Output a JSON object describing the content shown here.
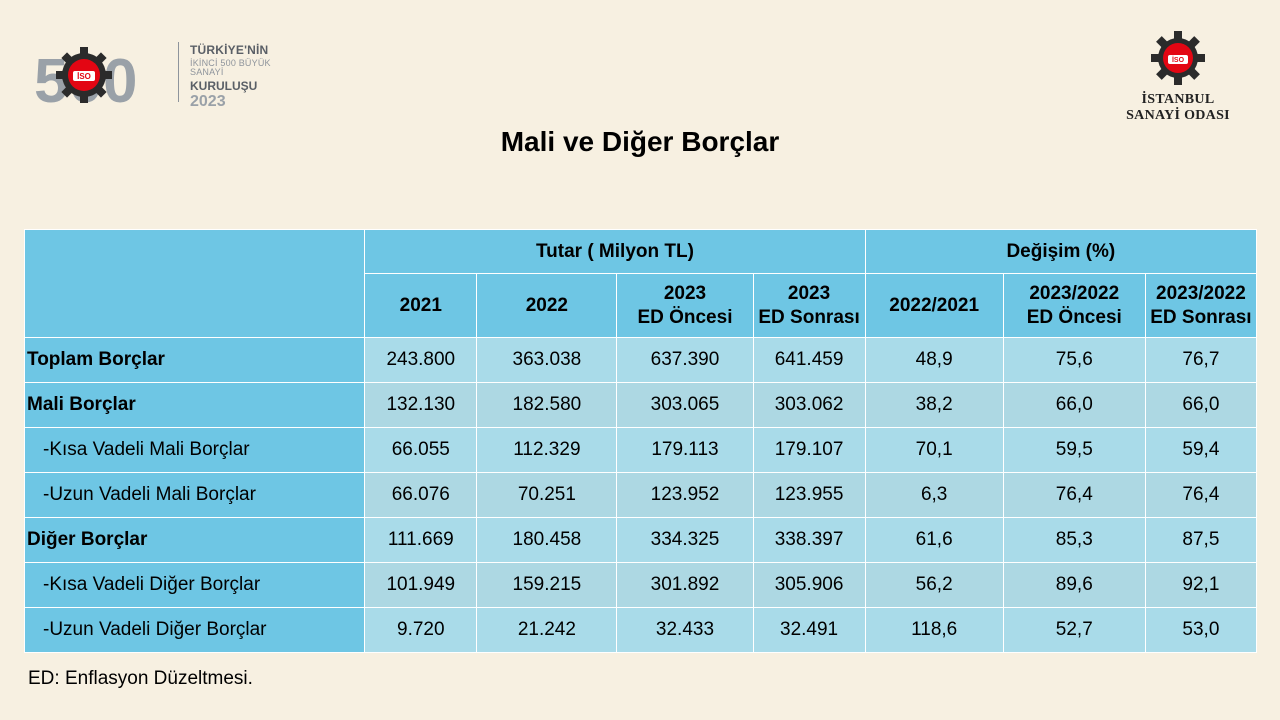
{
  "brand": {
    "logo_text": "500",
    "line1": "TÜRKİYE'NİN",
    "line2": "İKİNCİ 500 BÜYÜK SANAYİ",
    "line3": "KURULUŞU",
    "year": "2023",
    "badge_text": "İSO"
  },
  "iso": {
    "badge_text": "İSO",
    "name_line1": "İSTANBUL",
    "name_line2": "SANAYİ ODASI"
  },
  "title": "Mali ve Diğer Borçlar",
  "table": {
    "group_headers": {
      "amount": "Tutar ( Milyon TL)",
      "change": "Değişim (%)"
    },
    "columns": [
      {
        "l1": "2021",
        "l2": ""
      },
      {
        "l1": "2022",
        "l2": ""
      },
      {
        "l1": "2023",
        "l2": "ED Öncesi"
      },
      {
        "l1": "2023",
        "l2": "ED Sonrası"
      },
      {
        "l1": "2022/2021",
        "l2": ""
      },
      {
        "l1": "2023/2022",
        "l2": "ED Öncesi"
      },
      {
        "l1": "2023/2022",
        "l2": "ED Sonrası"
      }
    ],
    "rows": [
      {
        "label": "Toplam Borçlar",
        "values": [
          "243.800",
          "363.038",
          "637.390",
          "641.459",
          "48,9",
          "75,6",
          "76,7"
        ]
      },
      {
        "label": "Mali Borçlar",
        "values": [
          "132.130",
          "182.580",
          "303.065",
          "303.062",
          "38,2",
          "66,0",
          "66,0"
        ]
      },
      {
        "label": "-Kısa Vadeli Mali Borçlar",
        "values": [
          "66.055",
          "112.329",
          "179.113",
          "179.107",
          "70,1",
          "59,5",
          "59,4"
        ]
      },
      {
        "label": "-Uzun Vadeli Mali Borçlar",
        "values": [
          "66.076",
          "70.251",
          "123.952",
          "123.955",
          "6,3",
          "76,4",
          "76,4"
        ]
      },
      {
        "label": "Diğer Borçlar",
        "values": [
          "111.669",
          "180.458",
          "334.325",
          "338.397",
          "61,6",
          "85,3",
          "87,5"
        ]
      },
      {
        "label": "-Kısa Vadeli Diğer Borçlar",
        "values": [
          "101.949",
          "159.215",
          "301.892",
          "305.906",
          "56,2",
          "89,6",
          "92,1"
        ]
      },
      {
        "label": "-Uzun Vadeli Diğer Borçlar",
        "values": [
          "9.720",
          "21.242",
          "32.433",
          "32.491",
          "118,6",
          "52,7",
          "53,0"
        ]
      }
    ]
  },
  "footnote": "ED: Enflasyon Düzeltmesi.",
  "colors": {
    "header_blue": "#6ec6e4",
    "cell_blue": "#a9dbe9",
    "background": "#f7f0e1",
    "logo_red": "#e30613"
  }
}
